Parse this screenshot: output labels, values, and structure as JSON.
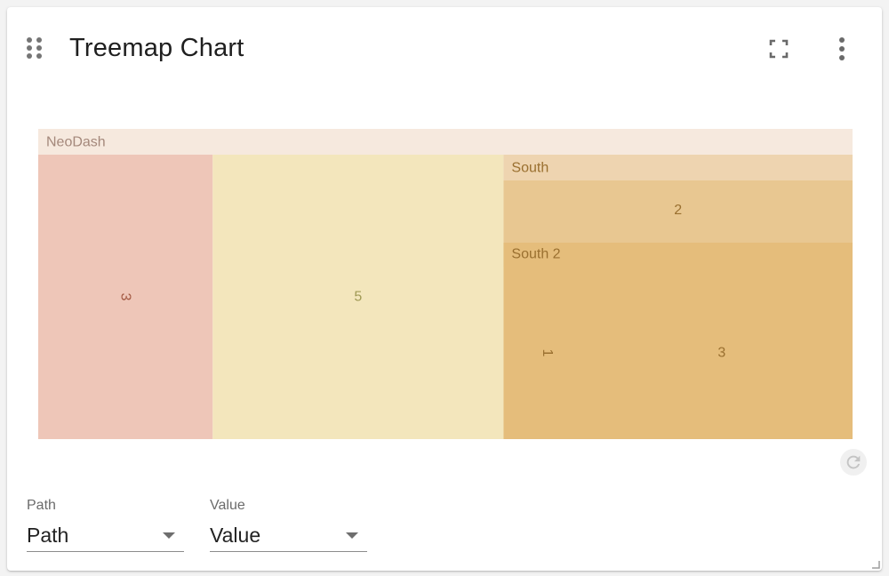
{
  "header": {
    "title": "Treemap Chart",
    "drag_icon": "drag-indicator-icon",
    "fullscreen_icon": "fullscreen-icon",
    "more_icon": "more-vert-icon"
  },
  "chart_data": {
    "type": "treemap",
    "title": "",
    "root": "NeoDash",
    "children": [
      {
        "name": "",
        "value": 3,
        "color": "#eec6b8"
      },
      {
        "name": "",
        "value": 5,
        "color": "#f3e6bc"
      },
      {
        "name": "South",
        "color": "#eed4b0",
        "children": [
          {
            "name": "",
            "value": 2,
            "color": "#e8c791"
          },
          {
            "name": "South 2",
            "color": "#e5bd7b",
            "children": [
              {
                "name": "",
                "value": 1,
                "color": "#e5bd7b"
              },
              {
                "name": "",
                "value": 3,
                "color": "#e5bd7b"
              }
            ]
          }
        ]
      }
    ],
    "colors": {
      "root_header": "#f6e9de",
      "root_label_text": "#a4887b",
      "leaf_text_red": "#a45b45",
      "leaf_text_yellow": "#a09a55",
      "leaf_text_orange": "#9a7030"
    }
  },
  "footer": {
    "refresh_icon": "refresh-icon",
    "selectors": [
      {
        "label": "Path",
        "value": "Path"
      },
      {
        "label": "Value",
        "value": "Value"
      }
    ]
  }
}
